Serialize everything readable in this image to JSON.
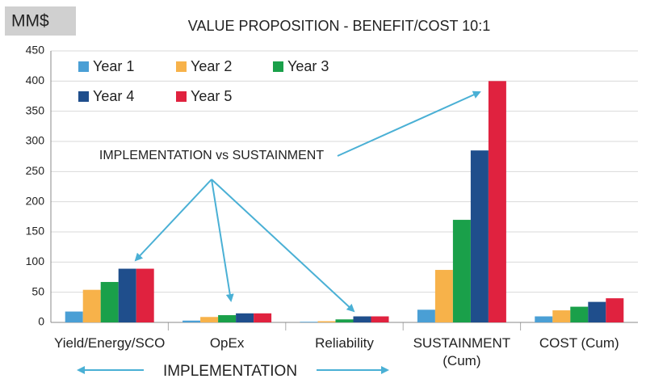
{
  "chart_data": {
    "type": "bar",
    "title": "VALUE PROPOSITION - BENEFIT/COST 10:1",
    "unit_label": "MM$",
    "annotation": "IMPLEMENTATION vs SUSTAINMENT",
    "group_label": "IMPLEMENTATION",
    "categories": [
      "Yield/Energy/SCO",
      "OpEx",
      "Reliability",
      "SUSTAINMENT (Cum)",
      "COST (Cum)"
    ],
    "series": [
      {
        "name": "Year 1",
        "color": "#4a9fd5",
        "values": [
          18,
          3,
          1,
          21,
          10
        ]
      },
      {
        "name": "Year 2",
        "color": "#f7b24a",
        "values": [
          54,
          9,
          2,
          87,
          20
        ]
      },
      {
        "name": "Year 3",
        "color": "#1aa04a",
        "values": [
          67,
          12,
          5,
          170,
          26
        ]
      },
      {
        "name": "Year 4",
        "color": "#1f4e8c",
        "values": [
          89,
          15,
          10,
          285,
          34
        ]
      },
      {
        "name": "Year 5",
        "color": "#e0223f",
        "values": [
          89,
          15,
          10,
          400,
          40
        ]
      }
    ],
    "ylim": [
      0,
      450
    ],
    "yticks": [
      0,
      50,
      100,
      150,
      200,
      250,
      300,
      350,
      400,
      450
    ],
    "grid": true
  }
}
